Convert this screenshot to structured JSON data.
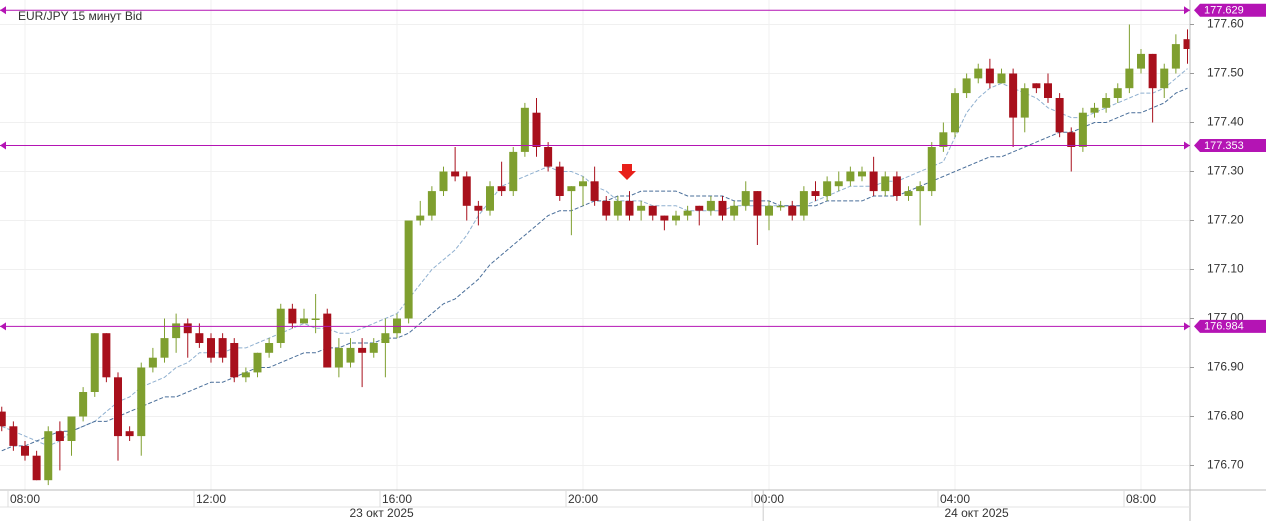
{
  "chart_data": {
    "type": "candlestick",
    "title": "EUR/JPY  15 минут Bid",
    "x": [
      "07:30",
      "07:45",
      "08:00",
      "08:15",
      "08:30",
      "08:45",
      "09:00",
      "09:15",
      "09:30",
      "09:45",
      "10:00",
      "10:15",
      "10:30",
      "10:45",
      "11:00",
      "11:15",
      "11:30",
      "11:45",
      "12:00",
      "12:15",
      "12:30",
      "12:45",
      "13:00",
      "13:15",
      "13:30",
      "13:45",
      "14:00",
      "14:15",
      "14:30",
      "14:45",
      "15:00",
      "15:15",
      "15:30",
      "15:45",
      "16:00",
      "16:15",
      "16:30",
      "16:45",
      "17:00",
      "17:15",
      "17:30",
      "17:45",
      "18:00",
      "18:15",
      "18:30",
      "18:45",
      "19:00",
      "19:15",
      "19:30",
      "19:45",
      "20:00",
      "20:15",
      "20:30",
      "20:45",
      "21:00",
      "21:15",
      "21:30",
      "21:45",
      "22:00",
      "22:15",
      "22:30",
      "22:45",
      "23:00",
      "23:15",
      "23:30",
      "23:45",
      "00:00",
      "00:15",
      "00:30",
      "00:45",
      "01:00",
      "01:15",
      "01:30",
      "01:45",
      "02:00",
      "02:15",
      "02:30",
      "02:45",
      "03:00",
      "03:15",
      "03:30",
      "03:45",
      "04:00",
      "04:15",
      "04:30",
      "04:45",
      "05:00",
      "05:15",
      "05:30",
      "05:45",
      "06:00",
      "06:15",
      "06:30",
      "06:45",
      "07:00",
      "07:15",
      "07:30",
      "07:45",
      "08:00",
      "08:15",
      "08:30",
      "08:45",
      "09:00"
    ],
    "open": [
      176.81,
      176.78,
      176.74,
      176.72,
      176.67,
      176.77,
      176.75,
      176.8,
      176.85,
      176.97,
      176.88,
      176.77,
      176.76,
      176.9,
      176.92,
      176.96,
      176.99,
      176.97,
      176.96,
      176.96,
      176.95,
      176.88,
      176.89,
      176.93,
      176.95,
      177.02,
      176.99,
      177.0,
      177.01,
      176.9,
      176.91,
      176.94,
      176.93,
      176.95,
      176.97,
      177.0,
      177.2,
      177.21,
      177.26,
      177.3,
      177.29,
      177.23,
      177.22,
      177.27,
      177.26,
      177.34,
      177.42,
      177.35,
      177.31,
      177.26,
      177.27,
      177.28,
      177.24,
      177.21,
      177.24,
      177.22,
      177.23,
      177.21,
      177.2,
      177.21,
      177.23,
      177.22,
      177.24,
      177.21,
      177.23,
      177.26,
      177.21,
      177.23,
      177.23,
      177.21,
      177.26,
      177.25,
      177.27,
      177.28,
      177.29,
      177.3,
      177.26,
      177.29,
      177.25,
      177.26,
      177.26,
      177.35,
      177.38,
      177.46,
      177.49,
      177.51,
      177.48,
      177.5,
      177.41,
      177.48,
      177.48,
      177.45,
      177.38,
      177.35,
      177.42,
      177.43,
      177.45,
      177.47,
      177.51,
      177.54,
      177.47,
      177.51,
      177.57
    ],
    "high": [
      176.82,
      176.79,
      176.75,
      176.73,
      176.78,
      176.79,
      176.8,
      176.86,
      176.97,
      176.97,
      176.89,
      176.78,
      176.91,
      176.94,
      177.0,
      177.01,
      177.0,
      176.99,
      176.97,
      176.97,
      176.96,
      176.9,
      176.93,
      176.96,
      177.03,
      177.03,
      177.02,
      177.05,
      177.02,
      176.96,
      176.96,
      176.96,
      176.96,
      177.0,
      177.01,
      177.2,
      177.24,
      177.27,
      177.31,
      177.35,
      177.3,
      177.24,
      177.28,
      177.32,
      177.35,
      177.44,
      177.45,
      177.36,
      177.32,
      177.27,
      177.29,
      177.31,
      177.25,
      177.25,
      177.26,
      177.24,
      177.23,
      177.21,
      177.22,
      177.23,
      177.23,
      177.25,
      177.25,
      177.24,
      177.28,
      177.26,
      177.24,
      177.24,
      177.24,
      177.27,
      177.28,
      177.29,
      177.3,
      177.31,
      177.31,
      177.33,
      177.3,
      177.3,
      177.27,
      177.28,
      177.36,
      177.4,
      177.47,
      177.5,
      177.52,
      177.53,
      177.51,
      177.51,
      177.48,
      177.48,
      177.5,
      177.46,
      177.39,
      177.43,
      177.44,
      177.46,
      177.48,
      177.6,
      177.55,
      177.54,
      177.52,
      177.58,
      177.59
    ],
    "low": [
      176.77,
      176.73,
      176.71,
      176.67,
      176.66,
      176.69,
      176.72,
      176.79,
      176.84,
      176.87,
      176.71,
      176.75,
      176.72,
      176.89,
      176.91,
      176.93,
      176.92,
      176.94,
      176.91,
      176.91,
      176.87,
      176.87,
      176.88,
      176.92,
      176.94,
      176.98,
      176.99,
      176.97,
      176.9,
      176.88,
      176.9,
      176.86,
      176.92,
      176.88,
      176.96,
      176.99,
      177.19,
      177.2,
      177.25,
      177.28,
      177.2,
      177.19,
      177.21,
      177.25,
      177.25,
      177.33,
      177.33,
      177.3,
      177.24,
      177.17,
      177.23,
      177.23,
      177.2,
      177.2,
      177.2,
      177.2,
      177.2,
      177.18,
      177.19,
      177.2,
      177.19,
      177.21,
      177.2,
      177.2,
      177.22,
      177.15,
      177.18,
      177.22,
      177.2,
      177.2,
      177.24,
      177.24,
      177.26,
      177.27,
      177.28,
      177.25,
      177.25,
      177.24,
      177.24,
      177.19,
      177.25,
      177.34,
      177.37,
      177.45,
      177.48,
      177.47,
      177.48,
      177.35,
      177.38,
      177.46,
      177.44,
      177.37,
      177.3,
      177.34,
      177.41,
      177.42,
      177.44,
      177.46,
      177.5,
      177.4,
      177.45,
      177.5,
      177.52
    ],
    "close": [
      176.78,
      176.74,
      176.72,
      176.67,
      176.77,
      176.75,
      176.8,
      176.85,
      176.97,
      176.88,
      176.76,
      176.76,
      176.9,
      176.92,
      176.96,
      176.99,
      176.97,
      176.95,
      176.92,
      176.92,
      176.88,
      176.89,
      176.93,
      176.95,
      177.02,
      176.99,
      177.0,
      177.0,
      176.9,
      176.94,
      176.94,
      176.93,
      176.95,
      176.97,
      177.0,
      177.2,
      177.21,
      177.26,
      177.3,
      177.29,
      177.23,
      177.22,
      177.27,
      177.26,
      177.34,
      177.43,
      177.35,
      177.31,
      177.25,
      177.27,
      177.28,
      177.24,
      177.21,
      177.24,
      177.21,
      177.23,
      177.21,
      177.2,
      177.21,
      177.22,
      177.22,
      177.24,
      177.21,
      177.23,
      177.26,
      177.21,
      177.23,
      177.23,
      177.21,
      177.26,
      177.25,
      177.28,
      177.28,
      177.3,
      177.3,
      177.26,
      177.29,
      177.25,
      177.26,
      177.27,
      177.35,
      177.38,
      177.46,
      177.49,
      177.51,
      177.48,
      177.5,
      177.41,
      177.47,
      177.47,
      177.45,
      177.38,
      177.35,
      177.42,
      177.43,
      177.45,
      177.47,
      177.51,
      177.54,
      177.47,
      177.51,
      177.56,
      177.55
    ],
    "up_color": "#7f9f2f",
    "down_color": "#a8101c",
    "lines": [
      {
        "color": "#8fb0d0",
        "values": [
          176.78,
          176.77,
          176.76,
          176.75,
          176.74,
          176.75,
          176.77,
          176.78,
          176.79,
          176.81,
          176.83,
          176.84,
          176.86,
          176.87,
          176.88,
          176.9,
          176.91,
          176.93,
          176.93,
          176.93,
          176.94,
          176.94,
          176.95,
          176.96,
          176.97,
          176.98,
          176.99,
          176.98,
          176.98,
          176.97,
          176.97,
          176.98,
          176.99,
          177.0,
          177.01,
          177.04,
          177.07,
          177.1,
          177.12,
          177.14,
          177.17,
          177.21,
          177.24,
          177.27,
          177.28,
          177.29,
          177.3,
          177.31,
          177.3,
          177.3,
          177.29,
          177.27,
          177.26,
          177.24,
          177.24,
          177.24,
          177.23,
          177.23,
          177.23,
          177.22,
          177.22,
          177.22,
          177.22,
          177.23,
          177.23,
          177.23,
          177.23,
          177.23,
          177.23,
          177.23,
          177.24,
          177.25,
          177.26,
          177.27,
          177.27,
          177.27,
          177.28,
          177.28,
          177.29,
          177.3,
          177.31,
          177.32,
          177.37,
          177.42,
          177.45,
          177.47,
          177.48,
          177.47,
          177.46,
          177.45,
          177.43,
          177.42,
          177.41,
          177.41,
          177.42,
          177.43,
          177.44,
          177.45,
          177.46,
          177.46,
          177.47,
          177.49,
          177.51
        ]
      },
      {
        "color": "#4a6f9a",
        "values": [
          176.73,
          176.74,
          176.74,
          176.75,
          176.76,
          176.77,
          176.77,
          176.78,
          176.79,
          176.79,
          176.8,
          176.81,
          176.82,
          176.83,
          176.84,
          176.84,
          176.85,
          176.86,
          176.87,
          176.87,
          176.88,
          176.89,
          176.9,
          176.9,
          176.91,
          176.92,
          176.93,
          176.93,
          176.94,
          176.94,
          176.95,
          176.95,
          176.95,
          176.96,
          176.96,
          176.97,
          176.99,
          177.01,
          177.03,
          177.04,
          177.06,
          177.08,
          177.11,
          177.13,
          177.15,
          177.17,
          177.19,
          177.21,
          177.22,
          177.22,
          177.23,
          177.24,
          177.24,
          177.25,
          177.25,
          177.26,
          177.26,
          177.26,
          177.26,
          177.25,
          177.25,
          177.25,
          177.25,
          177.24,
          177.24,
          177.24,
          177.24,
          177.23,
          177.23,
          177.23,
          177.23,
          177.24,
          177.24,
          177.24,
          177.24,
          177.25,
          177.25,
          177.25,
          177.26,
          177.27,
          177.28,
          177.29,
          177.3,
          177.31,
          177.32,
          177.33,
          177.33,
          177.34,
          177.35,
          177.36,
          177.37,
          177.38,
          177.38,
          177.39,
          177.4,
          177.4,
          177.41,
          177.42,
          177.42,
          177.43,
          177.44,
          177.46,
          177.47
        ]
      }
    ],
    "hlines": [
      177.629,
      177.353,
      176.984
    ],
    "hline_color": "#b414b4",
    "ylim": [
      176.65,
      177.65
    ],
    "yticks": [
      {
        "value": 176.7,
        "label": "176.70"
      },
      {
        "value": 176.8,
        "label": "176.80"
      },
      {
        "value": 176.9,
        "label": "176.90"
      },
      {
        "value": 177.0,
        "label": "177.00"
      },
      {
        "value": 177.1,
        "label": "177.10"
      },
      {
        "value": 177.2,
        "label": "177.20"
      },
      {
        "value": 177.3,
        "label": "177.30"
      },
      {
        "value": 177.4,
        "label": "177.40"
      },
      {
        "value": 177.5,
        "label": "177.50"
      },
      {
        "value": 177.6,
        "label": "177.60"
      }
    ],
    "xticks": [
      {
        "value": 2,
        "label": "08:00"
      },
      {
        "value": 18,
        "label": "12:00"
      },
      {
        "value": 34,
        "label": "16:00"
      },
      {
        "value": 50,
        "label": "20:00"
      },
      {
        "value": 66,
        "label": "00:00"
      },
      {
        "value": 82,
        "label": "04:00"
      },
      {
        "value": 98,
        "label": "08:00"
      }
    ],
    "dates": [
      "23 окт 2025",
      "24 окт 2025"
    ],
    "grid": true
  }
}
